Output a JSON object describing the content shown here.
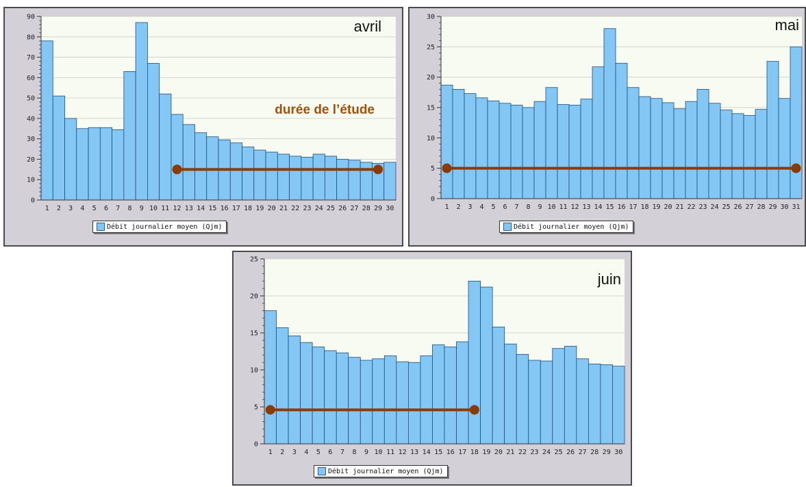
{
  "colors": {
    "bar_fill": "#84c7f5",
    "bar_stroke": "#1e4d7a",
    "plot_bg": "#f7fbf2",
    "study_line": "#8b3a00"
  },
  "chart_data": [
    {
      "type": "bar",
      "title": "avril",
      "categories": [
        "1",
        "2",
        "3",
        "4",
        "5",
        "6",
        "7",
        "8",
        "9",
        "10",
        "11",
        "12",
        "13",
        "14",
        "15",
        "16",
        "17",
        "18",
        "19",
        "20",
        "21",
        "22",
        "23",
        "24",
        "25",
        "26",
        "27",
        "28",
        "29",
        "30"
      ],
      "series": [
        {
          "name": "Débit journalier moyen (Qjm)",
          "values": [
            78,
            51,
            40,
            35,
            35.5,
            35.5,
            34.5,
            63,
            87,
            67,
            52,
            42,
            37,
            33,
            31,
            29.5,
            28,
            26,
            24.5,
            23.5,
            22.5,
            21.5,
            21,
            22.5,
            21.5,
            20,
            19.5,
            18.5,
            18,
            18.5
          ]
        }
      ],
      "yticks": [
        0,
        10,
        20,
        30,
        40,
        50,
        60,
        70,
        80,
        90
      ],
      "ylim": [
        0,
        90
      ],
      "annotation": "durée de l’étude",
      "study_period": {
        "from": "12",
        "to": "29",
        "y": 15
      }
    },
    {
      "type": "bar",
      "title": "mai",
      "categories": [
        "1",
        "2",
        "3",
        "4",
        "5",
        "6",
        "7",
        "8",
        "9",
        "10",
        "11",
        "12",
        "13",
        "14",
        "15",
        "16",
        "17",
        "18",
        "19",
        "20",
        "21",
        "22",
        "23",
        "24",
        "25",
        "26",
        "27",
        "28",
        "29",
        "30",
        "31"
      ],
      "series": [
        {
          "name": "Débit journalier moyen (Qjm)",
          "values": [
            18.7,
            18,
            17.3,
            16.6,
            16.1,
            15.7,
            15.4,
            15,
            16,
            18.3,
            15.5,
            15.4,
            16.4,
            21.7,
            28,
            22.3,
            18.3,
            16.8,
            16.5,
            15.8,
            14.8,
            16,
            18,
            15.7,
            14.6,
            14,
            13.7,
            14.7,
            22.6,
            16.5,
            25
          ]
        }
      ],
      "yticks": [
        0,
        5,
        10,
        15,
        20,
        25,
        30
      ],
      "ylim": [
        0,
        30
      ],
      "study_period": {
        "from": "1",
        "to": "31",
        "y": 5
      }
    },
    {
      "type": "bar",
      "title": "juin",
      "categories": [
        "1",
        "2",
        "3",
        "4",
        "5",
        "6",
        "7",
        "8",
        "9",
        "10",
        "11",
        "12",
        "13",
        "14",
        "15",
        "16",
        "17",
        "18",
        "19",
        "20",
        "21",
        "22",
        "23",
        "24",
        "25",
        "26",
        "27",
        "28",
        "29",
        "30"
      ],
      "series": [
        {
          "name": "Débit journalier moyen (Qjm)",
          "values": [
            18,
            15.7,
            14.6,
            13.7,
            13.1,
            12.6,
            12.3,
            11.7,
            11.3,
            11.5,
            11.9,
            11.1,
            11,
            11.9,
            13.4,
            13.1,
            13.8,
            22,
            21.2,
            15.8,
            13.5,
            12.1,
            11.3,
            11.2,
            12.9,
            13.2,
            11.5,
            10.8,
            10.7,
            10.5
          ]
        }
      ],
      "yticks": [
        0,
        5,
        10,
        15,
        20,
        25
      ],
      "ylim": [
        0,
        25
      ],
      "study_period": {
        "from": "1",
        "to": "18",
        "y": 4.6
      }
    }
  ]
}
